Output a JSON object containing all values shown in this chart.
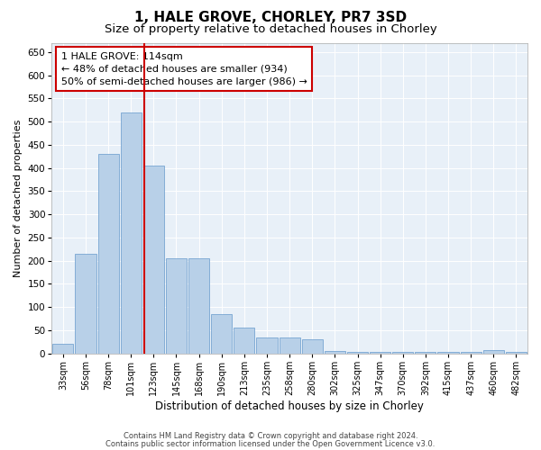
{
  "title": "1, HALE GROVE, CHORLEY, PR7 3SD",
  "subtitle": "Size of property relative to detached houses in Chorley",
  "xlabel": "Distribution of detached houses by size in Chorley",
  "ylabel": "Number of detached properties",
  "categories": [
    "33sqm",
    "56sqm",
    "78sqm",
    "101sqm",
    "123sqm",
    "145sqm",
    "168sqm",
    "190sqm",
    "213sqm",
    "235sqm",
    "258sqm",
    "280sqm",
    "302sqm",
    "325sqm",
    "347sqm",
    "370sqm",
    "392sqm",
    "415sqm",
    "437sqm",
    "460sqm",
    "482sqm"
  ],
  "values": [
    20,
    215,
    430,
    520,
    405,
    205,
    205,
    85,
    55,
    35,
    35,
    30,
    5,
    3,
    3,
    3,
    3,
    3,
    3,
    7,
    3
  ],
  "bar_color": "#b8d0e8",
  "bar_edge_color": "#6699cc",
  "vline_color": "#cc0000",
  "annotation_text": "1 HALE GROVE: 114sqm\n← 48% of detached houses are smaller (934)\n50% of semi-detached houses are larger (986) →",
  "annotation_box_color": "#ffffff",
  "annotation_box_edge": "#cc0000",
  "ylim": [
    0,
    670
  ],
  "yticks": [
    0,
    50,
    100,
    150,
    200,
    250,
    300,
    350,
    400,
    450,
    500,
    550,
    600,
    650
  ],
  "footer1": "Contains HM Land Registry data © Crown copyright and database right 2024.",
  "footer2": "Contains public sector information licensed under the Open Government Licence v3.0.",
  "bg_color": "#e8f0f8",
  "fig_bg_color": "#ffffff",
  "title_fontsize": 11,
  "subtitle_fontsize": 9.5,
  "xlabel_fontsize": 8.5,
  "ylabel_fontsize": 8,
  "annotation_fontsize": 8,
  "tick_fontsize": 7,
  "ytick_fontsize": 7.5
}
